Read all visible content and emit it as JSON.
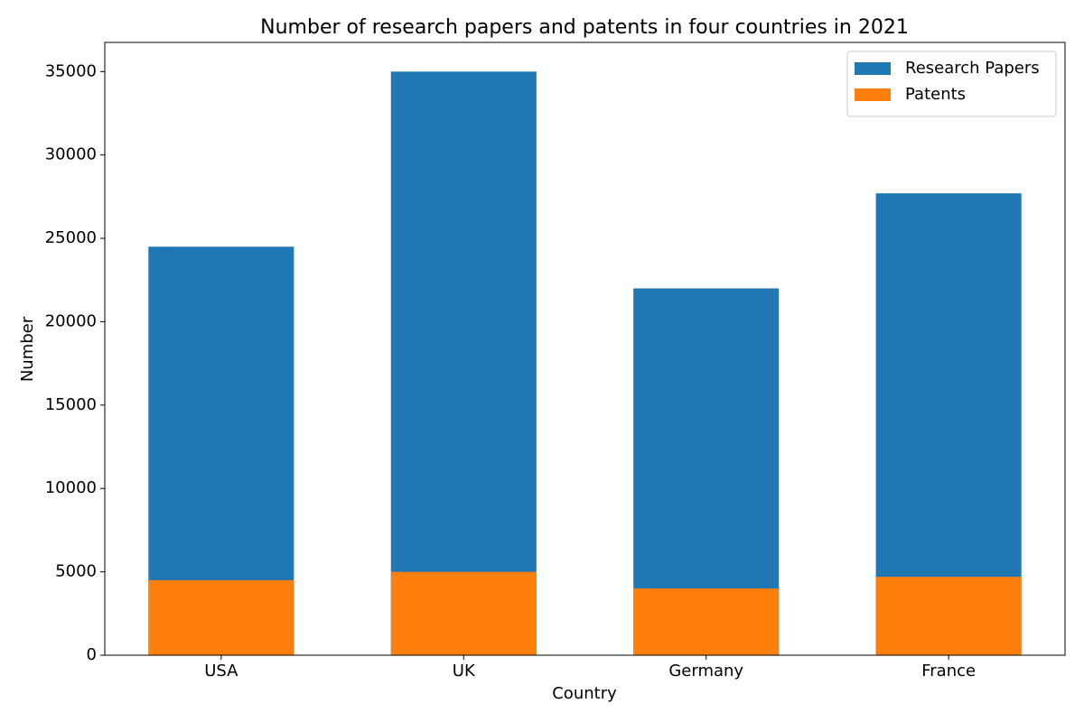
{
  "chart_data": {
    "type": "bar",
    "title": "Number of research papers and patents in four countries in 2021",
    "x_label": "Country",
    "y_label": "Number",
    "categories": [
      "USA",
      "UK",
      "Germany",
      "France"
    ],
    "series": [
      {
        "name": "Research Papers",
        "color": "#1f77b4",
        "values": [
          24500,
          35000,
          22000,
          27700
        ]
      },
      {
        "name": "Patents",
        "color": "#ff7f0e",
        "values": [
          4500,
          5000,
          4000,
          4700
        ]
      }
    ],
    "stacked": false,
    "ylim": [
      0,
      36750
    ],
    "yticks": [
      0,
      5000,
      10000,
      15000,
      20000,
      25000,
      30000,
      35000
    ],
    "grid": false,
    "legend": "upper right"
  }
}
